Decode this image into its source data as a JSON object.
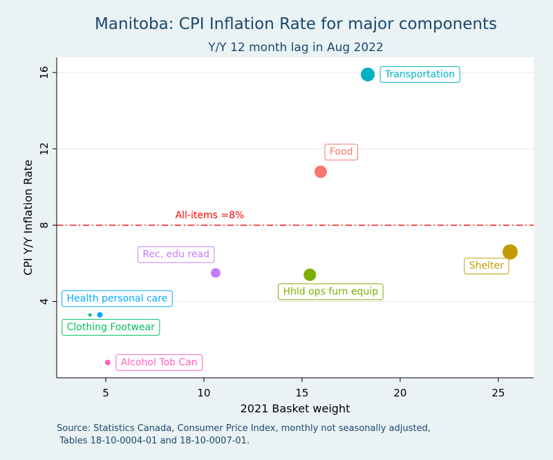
{
  "chart_data": {
    "type": "scatter",
    "title": "Manitoba: CPI Inflation Rate for major components",
    "subtitle": "Y/Y 12 month lag in Aug 2022",
    "xlabel": "2021 Basket weight",
    "ylabel": "CPI Y/Y Inflation Rate",
    "xlim": [
      2.5,
      26.8
    ],
    "ylim": [
      0,
      16.8
    ],
    "xticks": [
      5,
      10,
      15,
      20,
      25
    ],
    "yticks": [
      4,
      8,
      12,
      16
    ],
    "grid": true,
    "reference_line": {
      "y": 8,
      "label": "All-items =8%",
      "color": "#ff0000"
    },
    "points": [
      {
        "label": "Transportation",
        "x": 18.35,
        "y": 15.9,
        "color": "#00b2bd",
        "size": 10,
        "label_pos": "right"
      },
      {
        "label": "Food",
        "x": 15.95,
        "y": 10.8,
        "color": "#f8766d",
        "size": 9,
        "label_pos": "top-right"
      },
      {
        "label": "Shelter",
        "x": 25.6,
        "y": 6.6,
        "color": "#c49a00",
        "size": 11,
        "label_pos": "bottom-left"
      },
      {
        "label": "Rec, edu read",
        "x": 10.6,
        "y": 5.5,
        "color": "#c77cff",
        "size": 7,
        "label_pos": "top-left"
      },
      {
        "label": "Hhld ops furn equip",
        "x": 15.4,
        "y": 5.4,
        "color": "#7cae00",
        "size": 9,
        "label_pos": "bottom"
      },
      {
        "label": "Health personal care",
        "x": 4.7,
        "y": 3.3,
        "color": "#00a9ff",
        "size": 4,
        "label_pos": "top"
      },
      {
        "label": "Clothing Footwear",
        "x": 4.2,
        "y": 3.3,
        "color": "#00be67",
        "size": 2.5,
        "label_pos": "bottom"
      },
      {
        "label": "Alcohol Tob Can",
        "x": 5.1,
        "y": 0.8,
        "color": "#ff61c3",
        "size": 4,
        "label_pos": "right"
      }
    ]
  },
  "source_note": {
    "line1": "Source: Statistics Canada, Consumer Price Index, monthly not seasonally adjusted,",
    "line2": " Tables 18-10-0004-01 and 18-10-0007-01."
  }
}
